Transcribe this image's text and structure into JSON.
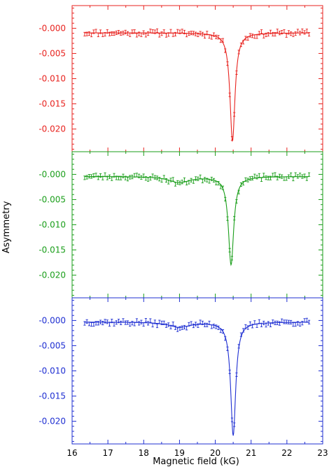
{
  "figure": {
    "ylabel": "Asymmetry",
    "xlabel": "Magnetic field (kG)"
  },
  "chart_data": [
    {
      "type": "line",
      "panel": "top",
      "color": "#e8231f",
      "title": "",
      "xlabel": "",
      "ylabel": "Asymmetry",
      "xlim": [
        16,
        23
      ],
      "ylim": [
        -0.0245,
        0.0045
      ],
      "yticks": [
        0.0,
        -0.005,
        -0.01,
        -0.015,
        -0.02
      ],
      "ytick_labels": [
        "-0.000",
        "-0.005",
        "-0.010",
        "-0.015",
        "-0.020"
      ],
      "series": [
        {
          "type": "line",
          "baseline": -0.0009,
          "dips": [
            {
              "center": 20.48,
              "depth": 0.0215,
              "width": 0.085
            }
          ]
        },
        {
          "type": "scatter",
          "x_start": 16.35,
          "x_end": 22.62,
          "count": 100,
          "noise": 0.0005,
          "seed": 11
        }
      ]
    },
    {
      "type": "line",
      "panel": "middle",
      "color": "#1a9e1a",
      "title": "",
      "xlabel": "",
      "ylabel": "Asymmetry",
      "xlim": [
        16,
        23
      ],
      "ylim": [
        -0.0245,
        0.0045
      ],
      "yticks": [
        0.0,
        -0.005,
        -0.01,
        -0.015,
        -0.02
      ],
      "ytick_labels": [
        "-0.000",
        "-0.005",
        "-0.010",
        "-0.015",
        "-0.020"
      ],
      "series": [
        {
          "type": "line",
          "baseline": -0.0004,
          "dips": [
            {
              "center": 20.44,
              "depth": 0.0175,
              "width": 0.09
            },
            {
              "center": 19.0,
              "depth": 0.0012,
              "width": 0.35
            }
          ]
        },
        {
          "type": "scatter",
          "x_start": 16.35,
          "x_end": 22.62,
          "count": 100,
          "noise": 0.0005,
          "seed": 23
        }
      ]
    },
    {
      "type": "line",
      "panel": "bottom",
      "color": "#1f2fd2",
      "title": "",
      "xlabel": "Magnetic field (kG)",
      "ylabel": "Asymmetry",
      "xlim": [
        16,
        23
      ],
      "ylim": [
        -0.0245,
        0.0045
      ],
      "xticks": [
        16,
        17,
        18,
        19,
        20,
        21,
        22,
        23
      ],
      "xtick_labels": [
        "16",
        "17",
        "18",
        "19",
        "20",
        "21",
        "22",
        "23"
      ],
      "yticks": [
        0.0,
        -0.005,
        -0.01,
        -0.015,
        -0.02
      ],
      "ytick_labels": [
        "-0.000",
        "-0.005",
        "-0.010",
        "-0.015",
        "-0.020"
      ],
      "series": [
        {
          "type": "line",
          "baseline": -0.0003,
          "dips": [
            {
              "center": 20.5,
              "depth": 0.0225,
              "width": 0.085
            },
            {
              "center": 19.0,
              "depth": 0.001,
              "width": 0.35
            }
          ]
        },
        {
          "type": "scatter",
          "x_start": 16.35,
          "x_end": 22.62,
          "count": 100,
          "noise": 0.0005,
          "seed": 37
        }
      ]
    }
  ]
}
